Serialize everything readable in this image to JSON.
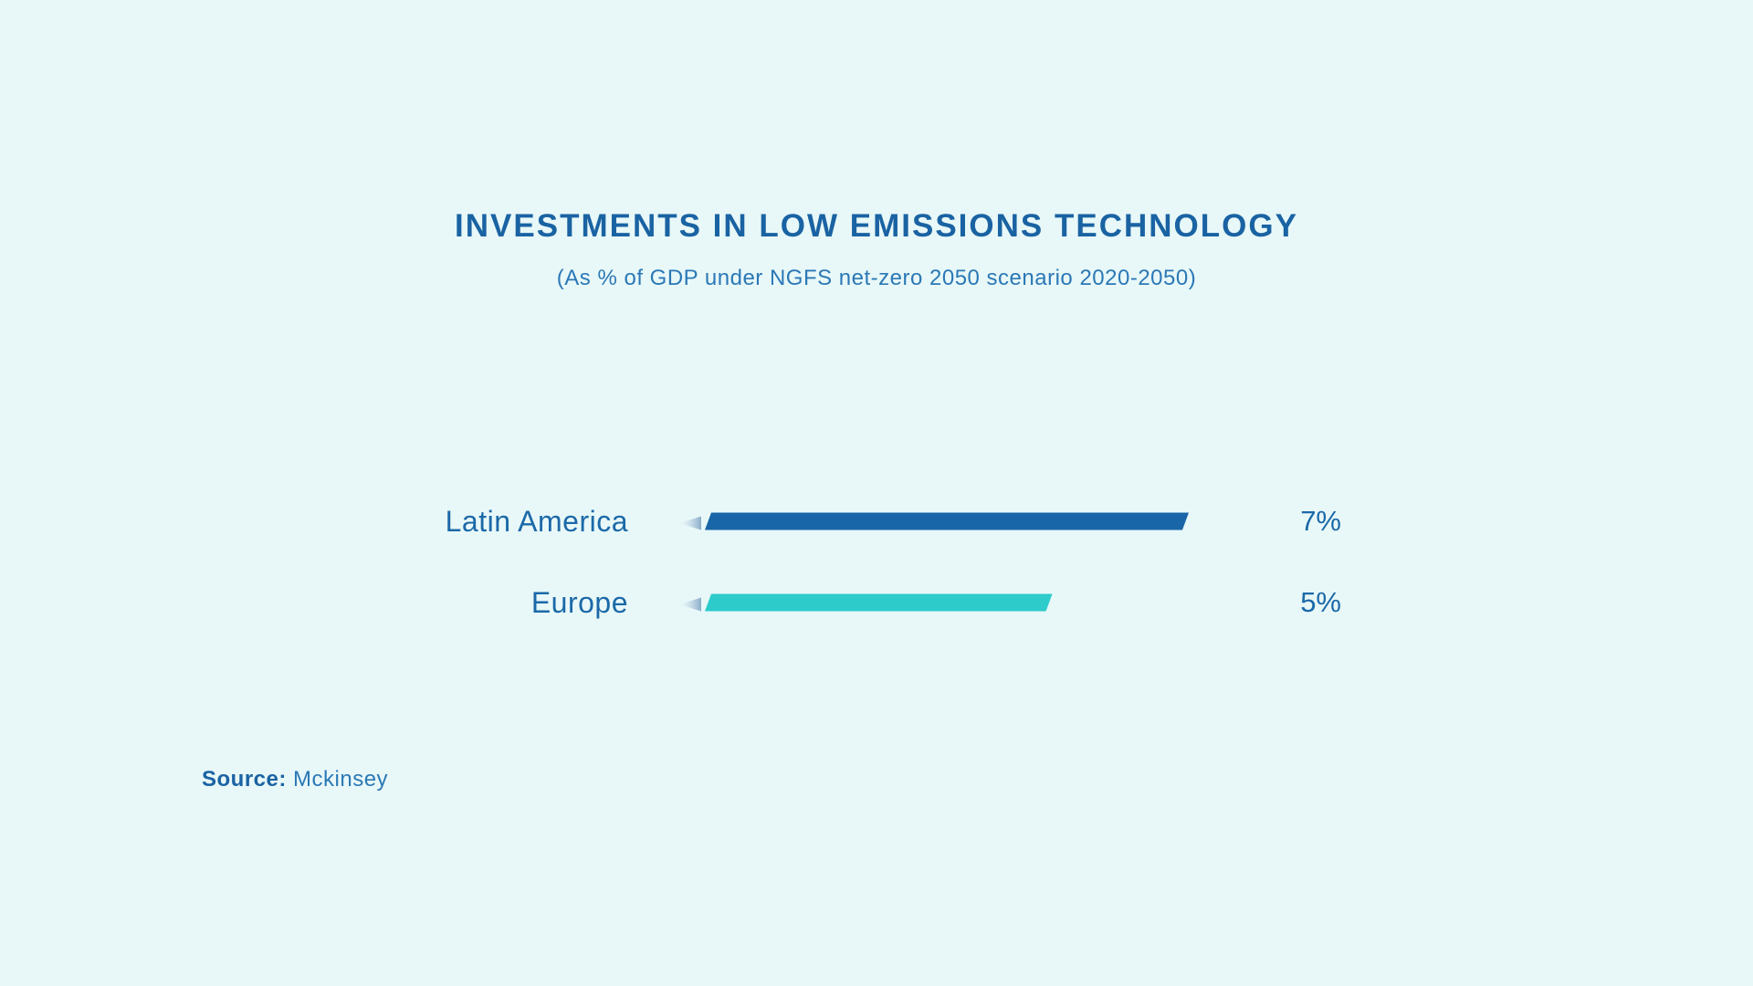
{
  "header": {
    "title": "INVESTMENTS IN LOW EMISSIONS TECHNOLOGY",
    "subtitle": "(As % of GDP under NGFS net-zero 2050 scenario 2020-2050)"
  },
  "chart_data": {
    "type": "bar",
    "orientation": "horizontal",
    "title": "INVESTMENTS IN LOW EMISSIONS TECHNOLOGY",
    "subtitle": "(As % of GDP under NGFS net-zero 2050 scenario 2020-2050)",
    "categories": [
      "Latin America",
      "Europe"
    ],
    "values": [
      7,
      5
    ],
    "value_labels": [
      "7%",
      "5%"
    ],
    "unit": "%",
    "colors": [
      "#1866a7",
      "#2ecbcb"
    ],
    "xlim": [
      0,
      7
    ],
    "grid": false,
    "legend": "none"
  },
  "footer": {
    "source_label": "Source:",
    "source_value": "Mckinsey"
  }
}
